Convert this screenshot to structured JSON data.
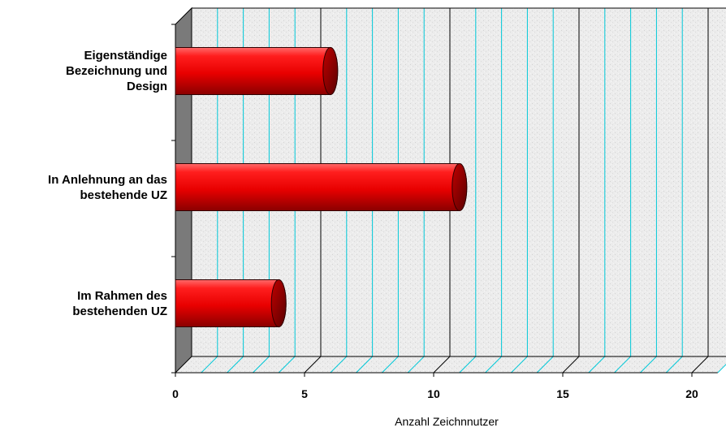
{
  "chart_data": {
    "type": "bar",
    "orientation": "horizontal",
    "style": "3d-cylinder",
    "categories": [
      "Eigenständige\nBezeichnung und\nDesign",
      "In Anlehnung an das\nbestehende UZ",
      "Im Rahmen des\nbestehenden UZ"
    ],
    "values": [
      6,
      11,
      4
    ],
    "xlabel": "Anzahl Zeichnnutzer",
    "xlim": [
      0,
      21
    ],
    "major_ticks": [
      0,
      5,
      10,
      15,
      20
    ],
    "grid": true,
    "bar_color": "#e00000",
    "gridline_color": "#00c8d8",
    "major_gridline_color": "#000000"
  }
}
